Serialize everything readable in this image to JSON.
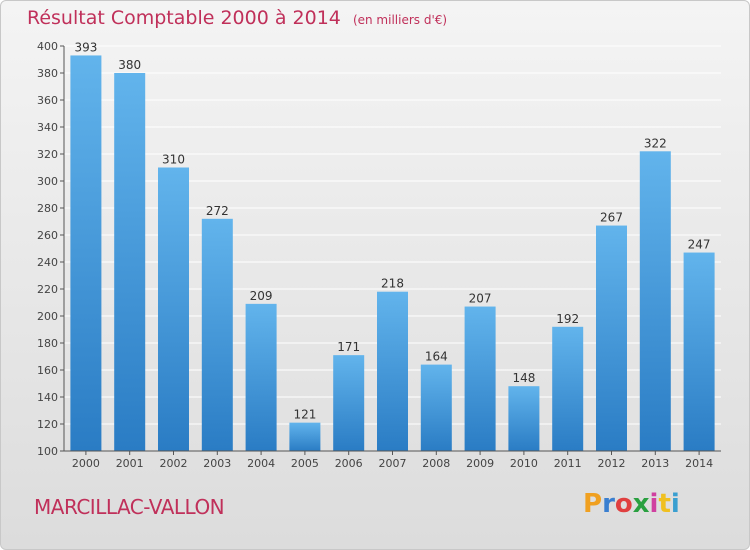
{
  "header": {
    "title": "Résultat Comptable 2000 à 2014",
    "unit": "(en milliers d'€)"
  },
  "footer": {
    "place": "MARCILLAC-VALLON",
    "logo_letters": [
      "P",
      "r",
      "o",
      "x",
      "i",
      "t",
      "i"
    ],
    "logo_colors": [
      "#f0a020",
      "#3a7fd0",
      "#e04040",
      "#2aa040",
      "#d040a0",
      "#f0c020",
      "#3a9fd0"
    ]
  },
  "colors": {
    "bar_top": "#62b4ec",
    "bar_bottom": "#2a7cc4",
    "accent": "#c0305a",
    "axis_text": "#444444",
    "value_text": "#333333",
    "grid": "#ffffff"
  },
  "chart_data": {
    "type": "bar",
    "title": "Résultat Comptable 2000 à 2014",
    "xlabel": "",
    "ylabel": "",
    "ylim": [
      100,
      400
    ],
    "yticks": [
      100,
      120,
      140,
      160,
      180,
      200,
      220,
      240,
      260,
      280,
      300,
      320,
      340,
      360,
      380,
      400
    ],
    "grid": true,
    "categories": [
      "2000",
      "2001",
      "2002",
      "2003",
      "2004",
      "2005",
      "2006",
      "2007",
      "2008",
      "2009",
      "2010",
      "2011",
      "2012",
      "2013",
      "2014"
    ],
    "values": [
      393,
      380,
      310,
      272,
      209,
      121,
      171,
      218,
      164,
      207,
      148,
      192,
      267,
      322,
      247
    ]
  }
}
